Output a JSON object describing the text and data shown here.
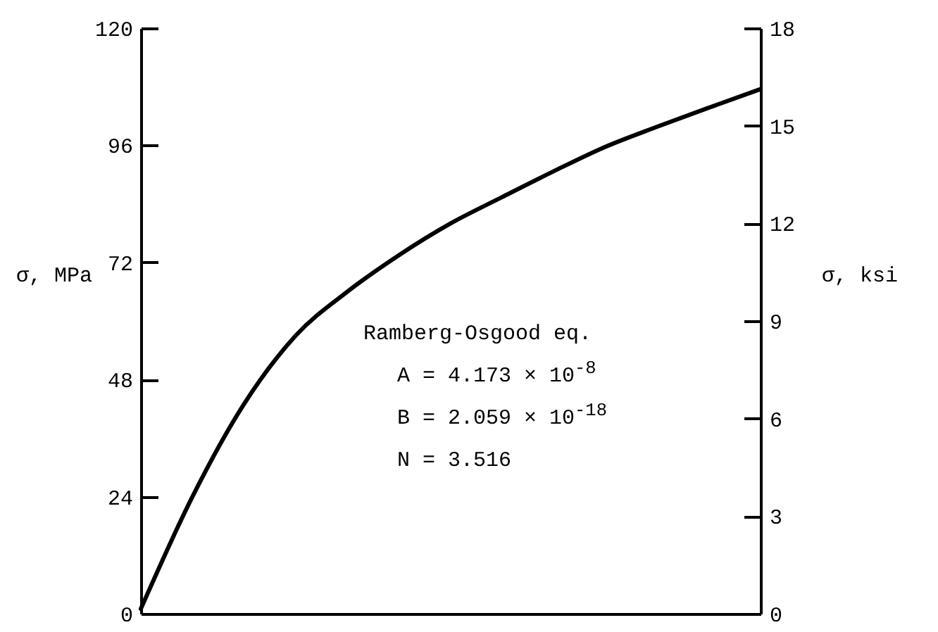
{
  "chart_data": {
    "type": "line",
    "categories": [
      null,
      null,
      null,
      null,
      null,
      null,
      null,
      null,
      null,
      null,
      null,
      null,
      null
    ],
    "series": [
      {
        "color": "#000000",
        "values": [
          1,
          24,
          43,
          57,
          66,
          73.5,
          80,
          85.4,
          90.7,
          95.7,
          99.8,
          103.7,
          107.5
        ]
      }
    ],
    "ylabel": "σ, MPa",
    "y2label": "σ, ksi",
    "ylim": [
      0,
      120
    ],
    "yticks": [
      0,
      24,
      48,
      72,
      96,
      120
    ],
    "y2lim": [
      0,
      18
    ],
    "y2ticks": [
      0,
      3,
      6,
      9,
      12,
      15,
      18
    ],
    "tick_labels": "y",
    "annotations": [
      "Ramberg-Osgood eq.",
      "A = 4.173 × 10$^{-8}$",
      "B = 2.059 × 10$^{-18}$",
      "N = 3.516"
    ]
  }
}
